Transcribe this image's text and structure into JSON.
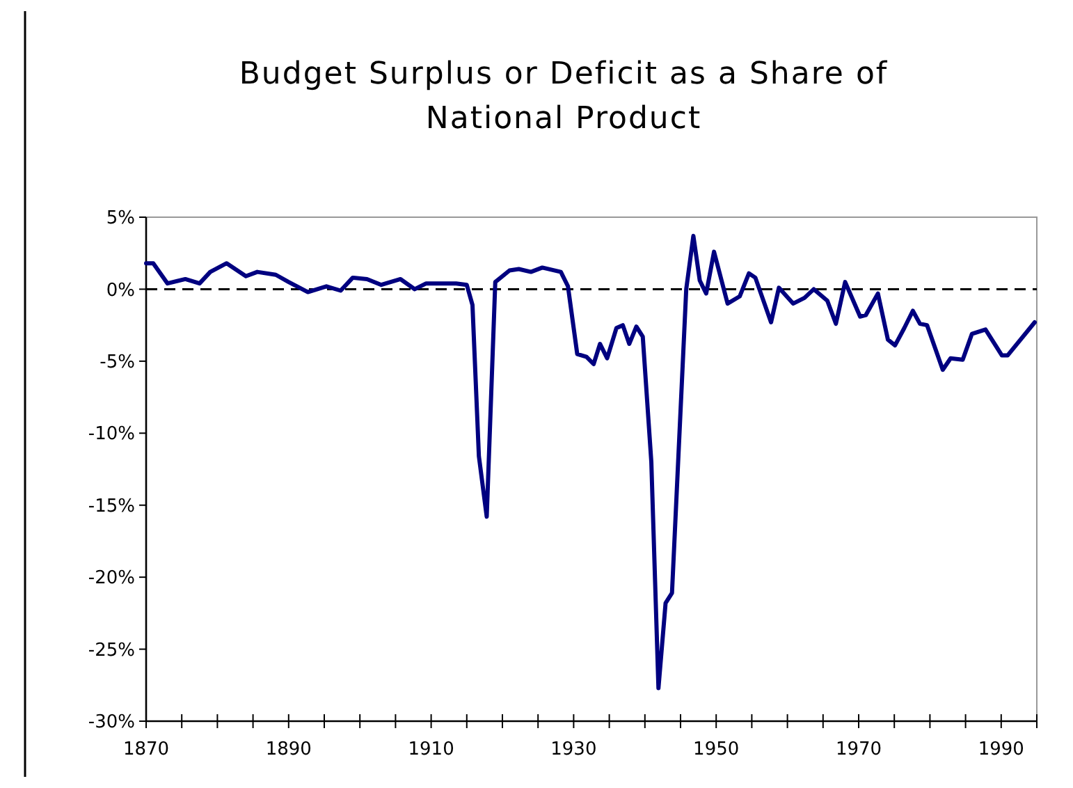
{
  "chart_data": {
    "type": "line",
    "title": "Budget Surplus or Deficit as a Share of National Product",
    "series": [
      {
        "color": "#000080",
        "x": [
          1870,
          1871,
          1873,
          1875.5,
          1877.5,
          1879,
          1881.3,
          1884,
          1885.6,
          1888.2,
          1890,
          1892.7,
          1895.3,
          1897.3,
          1899,
          1901,
          1903,
          1905.7,
          1907.7,
          1909.3,
          1913.5,
          1915,
          1915.8,
          1916.7,
          1917.8,
          1919,
          1921,
          1922.3,
          1924,
          1925.6,
          1928.2,
          1929.2,
          1930.5,
          1931.8,
          1932.8,
          1933.7,
          1934.7,
          1936,
          1936.9,
          1937.8,
          1938.8,
          1939.7,
          1940.9,
          1941.9,
          1942.9,
          1943.8,
          1945.8,
          1946.8,
          1947.7,
          1948.6,
          1949.7,
          1951.6,
          1953.3,
          1954.6,
          1955.5,
          1957.7,
          1958.8,
          1960.8,
          1962.4,
          1963.7,
          1965.6,
          1966.8,
          1968.1,
          1970.2,
          1971,
          1972.7,
          1974.1,
          1975.1,
          1976.4,
          1977.6,
          1978.6,
          1979.6,
          1981.8,
          1982.9,
          1984.6,
          1985.9,
          1987.8,
          1990.1,
          1990.9,
          1994.7
        ],
        "values": [
          1.8,
          1.8,
          0.4,
          0.7,
          0.4,
          1.2,
          1.8,
          0.9,
          1.2,
          1.0,
          0.5,
          -0.2,
          0.2,
          -0.1,
          0.8,
          0.7,
          0.3,
          0.7,
          0,
          0.4,
          0.4,
          0.3,
          -1.1,
          -11.6,
          -15.8,
          0.5,
          1.3,
          1.4,
          1.2,
          1.5,
          1.2,
          0.2,
          -4.5,
          -4.7,
          -5.2,
          -3.8,
          -4.8,
          -2.7,
          -2.5,
          -3.8,
          -2.6,
          -3.3,
          -12,
          -27.7,
          -21.8,
          -21.1,
          0,
          3.7,
          0.6,
          -0.3,
          2.6,
          -1,
          -0.5,
          1.1,
          0.8,
          -2.3,
          0.1,
          -1,
          -0.6,
          0,
          -0.8,
          -2.4,
          0.5,
          -1.9,
          -1.8,
          -0.3,
          -3.5,
          -3.9,
          -2.7,
          -1.5,
          -2.4,
          -2.5,
          -5.6,
          -4.8,
          -4.9,
          -3.1,
          -2.8,
          -4.6,
          -4.6,
          -2.3
        ]
      }
    ],
    "xlim": [
      1870,
      1995
    ],
    "xticks": [
      1870,
      {
        "value": 1875,
        "label": null
      },
      {
        "value": 1880,
        "label": null
      },
      {
        "value": 1885,
        "label": null
      },
      1890,
      {
        "value": 1895,
        "label": null
      },
      {
        "value": 1900,
        "label": null
      },
      {
        "value": 1905,
        "label": null
      },
      1910,
      {
        "value": 1915,
        "label": null
      },
      {
        "value": 1920,
        "label": null
      },
      {
        "value": 1925,
        "label": null
      },
      1930,
      {
        "value": 1935,
        "label": null
      },
      {
        "value": 1940,
        "label": null
      },
      {
        "value": 1945,
        "label": null
      },
      1950,
      {
        "value": 1955,
        "label": null
      },
      {
        "value": 1960,
        "label": null
      },
      {
        "value": 1965,
        "label": null
      },
      1970,
      {
        "value": 1975,
        "label": null
      },
      {
        "value": 1980,
        "label": null
      },
      {
        "value": 1985,
        "label": null
      },
      1990,
      {
        "value": 1995,
        "label": null
      }
    ],
    "ylim": [
      -30,
      5
    ],
    "yticks": [
      {
        "value": 5,
        "label": "5%"
      },
      {
        "value": 0,
        "label": "0%"
      },
      {
        "value": -5,
        "label": "-5%"
      },
      {
        "value": -10,
        "label": "-10%"
      },
      {
        "value": -15,
        "label": "-15%"
      },
      {
        "value": -20,
        "label": "-20%"
      },
      {
        "value": -25,
        "label": "-25%"
      },
      {
        "value": -30,
        "label": "-30%"
      }
    ],
    "ref_lines": [
      {
        "axis": "y",
        "value": 0,
        "color": "#000000",
        "line_style": "dashed"
      }
    ],
    "line_style": "solid",
    "marker": "none"
  }
}
